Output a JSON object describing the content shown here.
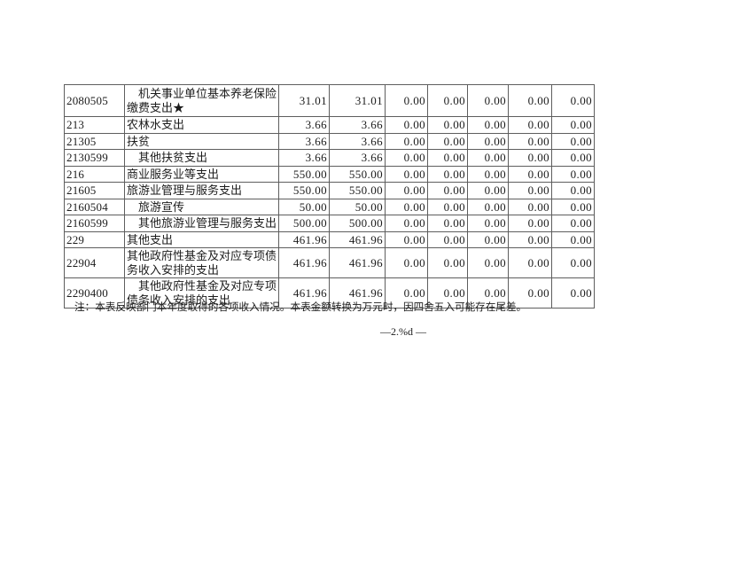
{
  "colors": {
    "page_background": "#ffffff",
    "table_border": "#5e5e5e",
    "text": "#1c1c1c"
  },
  "table": {
    "rows": [
      {
        "code": "2080505",
        "name": "机关事业单位基本养老保险缴费支出★",
        "indent": true,
        "values": [
          "31.01",
          "31.01",
          "0.00",
          "0.00",
          "0.00",
          "0.00",
          "0.00"
        ]
      },
      {
        "code": "213",
        "name": "农林水支出",
        "indent": false,
        "values": [
          "3.66",
          "3.66",
          "0.00",
          "0.00",
          "0.00",
          "0.00",
          "0.00"
        ]
      },
      {
        "code": "21305",
        "name": "扶贫",
        "indent": false,
        "values": [
          "3.66",
          "3.66",
          "0.00",
          "0.00",
          "0.00",
          "0.00",
          "0.00"
        ]
      },
      {
        "code": "2130599",
        "name": "其他扶贫支出",
        "indent": true,
        "values": [
          "3.66",
          "3.66",
          "0.00",
          "0.00",
          "0.00",
          "0.00",
          "0.00"
        ]
      },
      {
        "code": "216",
        "name": "商业服务业等支出",
        "indent": false,
        "values": [
          "550.00",
          "550.00",
          "0.00",
          "0.00",
          "0.00",
          "0.00",
          "0.00"
        ]
      },
      {
        "code": "21605",
        "name": "旅游业管理与服务支出",
        "indent": false,
        "values": [
          "550.00",
          "550.00",
          "0.00",
          "0.00",
          "0.00",
          "0.00",
          "0.00"
        ]
      },
      {
        "code": "2160504",
        "name": "旅游宣传",
        "indent": true,
        "values": [
          "50.00",
          "50.00",
          "0.00",
          "0.00",
          "0.00",
          "0.00",
          "0.00"
        ]
      },
      {
        "code": "2160599",
        "name": "其他旅游业管理与服务支出",
        "indent": true,
        "values": [
          "500.00",
          "500.00",
          "0.00",
          "0.00",
          "0.00",
          "0.00",
          "0.00"
        ]
      },
      {
        "code": "229",
        "name": "其他支出",
        "indent": false,
        "values": [
          "461.96",
          "461.96",
          "0.00",
          "0.00",
          "0.00",
          "0.00",
          "0.00"
        ]
      },
      {
        "code": "22904",
        "name": "其他政府性基金及对应专项债务收入安排的支出",
        "indent": false,
        "values": [
          "461.96",
          "461.96",
          "0.00",
          "0.00",
          "0.00",
          "0.00",
          "0.00"
        ]
      },
      {
        "code": "2290400",
        "name": "其他政府性基金及对应专项债务收入安排的支出",
        "indent": true,
        "values": [
          "461.96",
          "461.96",
          "0.00",
          "0.00",
          "0.00",
          "0.00",
          "0.00"
        ]
      }
    ]
  },
  "note": "注：本表反映部门本年度取得的各项收入情况。本表金额转换为万元时，因四舍五入可能存在尾差。",
  "page_footer": "—2.%d —"
}
